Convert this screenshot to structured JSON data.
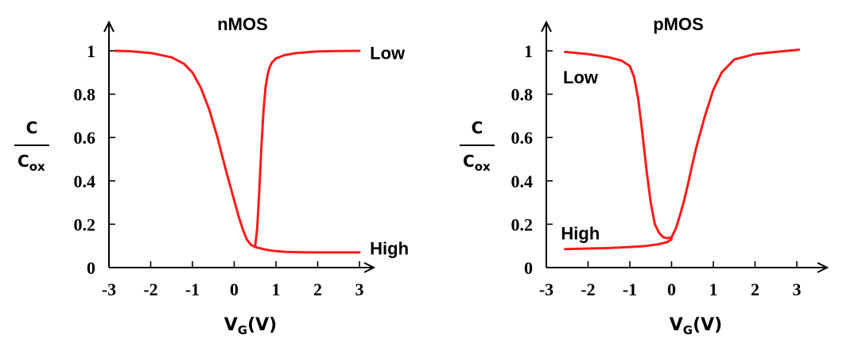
{
  "chart_data": [
    {
      "type": "line",
      "title": "nMOS",
      "xlabel": "V_G(V)",
      "xlabel_main": "V",
      "xlabel_sub": "G",
      "xlabel_unit": "(V)",
      "ylabel_num": "C",
      "ylabel_den_main": "C",
      "ylabel_den_sub": "ox",
      "xlim": [
        -3,
        3
      ],
      "ylim": [
        0,
        1
      ],
      "xticks": [
        "-3",
        "-2",
        "-1",
        "0",
        "1",
        "2",
        "3"
      ],
      "yticks": [
        "0",
        "0.2",
        "0.4",
        "0.6",
        "0.8",
        "1"
      ],
      "color": "#ff1a1a",
      "grid": false,
      "series": [
        {
          "name": "Low",
          "x": [
            -2.85,
            -2.5,
            -2.0,
            -1.5,
            -1.2,
            -1.0,
            -0.8,
            -0.6,
            -0.4,
            -0.2,
            0.0,
            0.1,
            0.2,
            0.3,
            0.4,
            0.5
          ],
          "y": [
            1.0,
            0.998,
            0.99,
            0.97,
            0.94,
            0.9,
            0.83,
            0.73,
            0.6,
            0.45,
            0.31,
            0.24,
            0.18,
            0.13,
            0.105,
            0.095
          ]
        },
        {
          "name": "Low",
          "x": [
            0.5,
            0.55,
            0.6,
            0.65,
            0.7,
            0.75,
            0.8,
            0.85,
            0.9,
            1.0,
            1.2,
            1.5,
            2.0,
            2.5,
            3.0
          ],
          "y": [
            0.095,
            0.18,
            0.35,
            0.55,
            0.72,
            0.83,
            0.89,
            0.925,
            0.945,
            0.965,
            0.98,
            0.99,
            0.997,
            0.999,
            1.0
          ]
        },
        {
          "name": "High",
          "x": [
            0.5,
            0.7,
            0.9,
            1.2,
            1.5,
            2.0,
            2.5,
            3.0
          ],
          "y": [
            0.095,
            0.085,
            0.078,
            0.073,
            0.071,
            0.07,
            0.07,
            0.07
          ]
        }
      ],
      "annotations": [
        {
          "text": "Low",
          "x": 3.25,
          "y": 0.99
        },
        {
          "text": "High",
          "x": 3.25,
          "y": 0.09
        }
      ]
    },
    {
      "type": "line",
      "title": "pMOS",
      "xlabel": "V_G(V)",
      "xlabel_main": "V",
      "xlabel_sub": "G",
      "xlabel_unit": "(V)",
      "ylabel_num": "C",
      "ylabel_den_main": "C",
      "ylabel_den_sub": "ox",
      "xlim": [
        -3,
        3
      ],
      "ylim": [
        0,
        1
      ],
      "xticks": [
        "-3",
        "-2",
        "-1",
        "0",
        "1",
        "2",
        "3"
      ],
      "yticks": [
        "0",
        "0.2",
        "0.4",
        "0.6",
        "0.8",
        "1"
      ],
      "color": "#ff1a1a",
      "grid": false,
      "series": [
        {
          "name": "Low",
          "x": [
            -2.55,
            -2.0,
            -1.5,
            -1.2,
            -1.0,
            -0.9,
            -0.8,
            -0.7,
            -0.6,
            -0.5,
            -0.4,
            -0.3,
            -0.2,
            -0.1,
            0.0
          ],
          "y": [
            0.995,
            0.985,
            0.97,
            0.955,
            0.93,
            0.88,
            0.78,
            0.62,
            0.45,
            0.3,
            0.2,
            0.16,
            0.14,
            0.135,
            0.14
          ]
        },
        {
          "name": "Low",
          "x": [
            0.0,
            0.1,
            0.2,
            0.3,
            0.4,
            0.5,
            0.6,
            0.8,
            1.0,
            1.2,
            1.5,
            2.0,
            2.5,
            3.05
          ],
          "y": [
            0.14,
            0.18,
            0.24,
            0.31,
            0.39,
            0.48,
            0.56,
            0.7,
            0.82,
            0.9,
            0.96,
            0.985,
            0.995,
            1.005
          ]
        },
        {
          "name": "High",
          "x": [
            -2.55,
            -2.0,
            -1.5,
            -1.0,
            -0.6,
            -0.3,
            -0.1,
            0.0
          ],
          "y": [
            0.085,
            0.088,
            0.09,
            0.095,
            0.1,
            0.108,
            0.118,
            0.13
          ]
        }
      ],
      "annotations": [
        {
          "text": "Low",
          "x": -2.6,
          "y": 0.88
        },
        {
          "text": "High",
          "x": -2.65,
          "y": 0.16
        }
      ]
    }
  ]
}
